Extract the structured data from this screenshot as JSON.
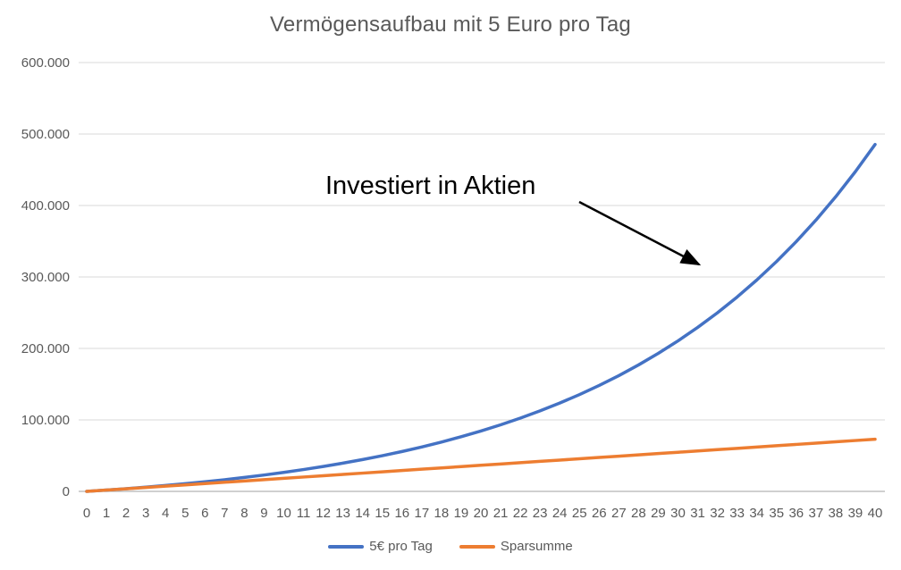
{
  "title": "Vermögensaufbau mit 5 Euro pro Tag",
  "annotation": {
    "label": "Investiert in Aktien"
  },
  "colors": {
    "grid": "#d9d9d9",
    "axis_line": "#c0c0c0",
    "tick_text": "#595959",
    "title_text": "#595959",
    "annotation_text": "#000000",
    "series_blue": "#4472c4",
    "series_orange": "#ed7d31"
  },
  "chart_data": {
    "type": "line",
    "title": "Vermögensaufbau mit 5 Euro pro Tag",
    "xlabel": "",
    "ylabel": "",
    "x": [
      0,
      1,
      2,
      3,
      4,
      5,
      6,
      7,
      8,
      9,
      10,
      11,
      12,
      13,
      14,
      15,
      16,
      17,
      18,
      19,
      20,
      21,
      22,
      23,
      24,
      25,
      26,
      27,
      28,
      29,
      30,
      31,
      32,
      33,
      34,
      35,
      36,
      37,
      38,
      39,
      40
    ],
    "ylim": [
      0,
      600000
    ],
    "ytick_values": [
      0,
      100000,
      200000,
      300000,
      400000,
      500000,
      600000
    ],
    "ytick_labels": [
      "0",
      "100.000",
      "200.000",
      "300.000",
      "400.000",
      "500.000",
      "600.000"
    ],
    "grid": true,
    "legend_position": "bottom",
    "series": [
      {
        "name": "5€ pro Tag",
        "color": "#4472c4",
        "values": [
          0,
          1825,
          3798,
          5931,
          8236,
          10728,
          13422,
          16334,
          19482,
          22885,
          26564,
          30541,
          34839,
          39486,
          44510,
          49940,
          55810,
          62156,
          69015,
          76431,
          84447,
          93112,
          102479,
          112604,
          123550,
          135383,
          148174,
          162001,
          176948,
          193106,
          210573,
          229454,
          249865,
          271929,
          295780,
          321563,
          349435,
          379564,
          412134,
          447341,
          485401
        ]
      },
      {
        "name": "Sparsumme",
        "color": "#ed7d31",
        "values": [
          0,
          1825,
          3650,
          5475,
          7300,
          9125,
          10950,
          12775,
          14600,
          16425,
          18250,
          20075,
          21900,
          23725,
          25550,
          27375,
          29200,
          31025,
          32850,
          34675,
          36500,
          38325,
          40150,
          41975,
          43800,
          45625,
          47450,
          49275,
          51100,
          52925,
          54750,
          56575,
          58400,
          60225,
          62050,
          63875,
          65700,
          67525,
          69350,
          71175,
          73000
        ]
      }
    ],
    "annotations": [
      {
        "text": "Investiert in Aktien",
        "points_to_series": "5€ pro Tag"
      }
    ]
  }
}
